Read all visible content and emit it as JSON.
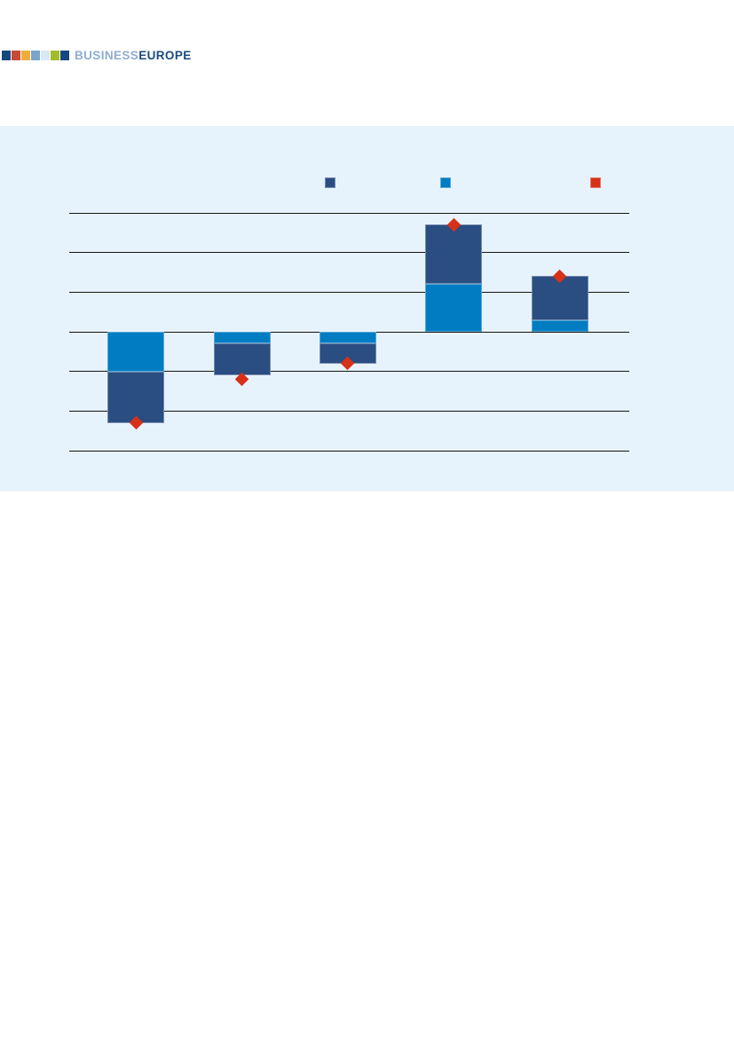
{
  "page": {
    "background": "#ffffff"
  },
  "logo": {
    "squares": [
      "#17477e",
      "#c74a3b",
      "#f0ad3b",
      "#7aa4cb",
      "#d8e8f4",
      "#a3bc28",
      "#17477e"
    ],
    "wordmark": {
      "part1": "BUSINESS",
      "part2": "EUROPE",
      "part1_color": "#8fadd0",
      "part2_color": "#1b4a80"
    }
  },
  "chart_panel": {
    "background": "#e7f3fc",
    "gridline_color": "#141414",
    "legend": [
      {
        "name": "dark-blue-series",
        "swatch_color": "#2a4d82",
        "label": ""
      },
      {
        "name": "light-blue-series",
        "swatch_color": "#007cc2",
        "label": ""
      },
      {
        "name": "red-diamond-series",
        "swatch_color": "#d8311a",
        "label": ""
      }
    ]
  },
  "chart_data": {
    "type": "bar",
    "subtype": "stacked-with-total-markers",
    "title": "",
    "xlabel": "",
    "ylabel": "",
    "categories": [
      "",
      "",
      "",
      "",
      ""
    ],
    "series": [
      {
        "name": "light-blue-segment-adjacent-to-axis",
        "color": "#007cc2",
        "values": [
          -1.0,
          -0.3,
          -0.3,
          1.2,
          0.3
        ]
      },
      {
        "name": "dark-blue-segment-outer",
        "color": "#2a4d82",
        "values": [
          -1.3,
          -0.8,
          -0.5,
          1.5,
          1.1
        ]
      },
      {
        "name": "red-diamond-total",
        "color": "#d8311a",
        "marker": "diamond",
        "values": [
          -2.3,
          -1.2,
          -0.8,
          2.7,
          1.4
        ]
      }
    ],
    "ylim": [
      -3,
      3
    ],
    "gridline_values": [
      3,
      2,
      1,
      0,
      -1,
      -2,
      -3
    ],
    "grid": true,
    "legend_position": "top",
    "axis_tick_labels_visible": false
  }
}
